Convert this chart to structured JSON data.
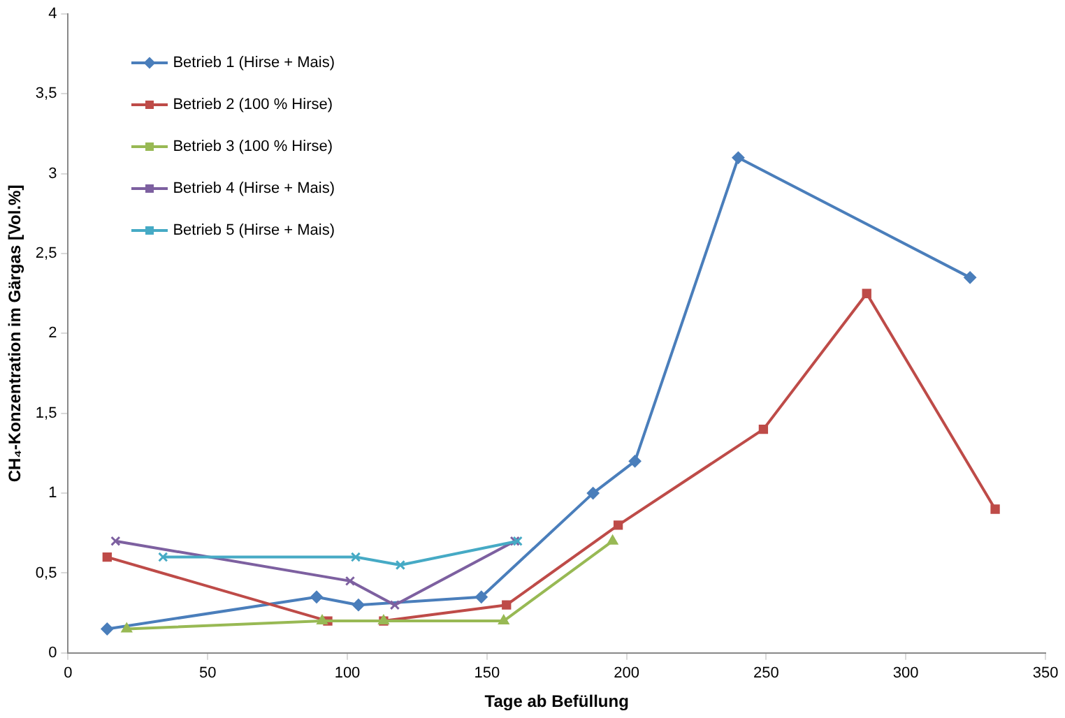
{
  "chart_data": {
    "type": "line",
    "xlabel": "Tage ab Befüllung",
    "ylabel": "CH₄-Konzentration im Gärgas [Vol.%]",
    "xlim": [
      0,
      350
    ],
    "xticks": [
      0,
      50,
      100,
      150,
      200,
      250,
      300,
      350
    ],
    "ylim": [
      0,
      4
    ],
    "yticks": [
      0,
      {
        "value": 0.5,
        "label": "0,5"
      },
      1,
      {
        "value": 1.5,
        "label": "1,5"
      },
      2,
      {
        "value": 2.5,
        "label": "2,5"
      },
      3,
      {
        "value": 3.5,
        "label": "3,5"
      },
      4
    ],
    "grid": false,
    "legend": "top left",
    "line_style": "solid",
    "series": [
      {
        "name": "Betrieb 1 (Hirse + Mais)",
        "color": "#4a7ebb",
        "marker": "diamond",
        "x": [
          14,
          89,
          104,
          148,
          188,
          203,
          240,
          323
        ],
        "values": [
          0.15,
          0.35,
          0.3,
          0.35,
          1.0,
          1.2,
          3.1,
          2.35
        ]
      },
      {
        "name": "Betrieb 2 (100 % Hirse)",
        "color": "#be4b48",
        "marker": "square",
        "x": [
          14,
          93,
          113,
          157,
          197,
          249,
          286,
          332
        ],
        "values": [
          0.6,
          0.2,
          0.2,
          0.3,
          0.8,
          1.4,
          2.25,
          0.9
        ]
      },
      {
        "name": "Betrieb 3 (100 % Hirse)",
        "color": "#98b954",
        "marker": "triangle",
        "x": [
          21,
          91,
          113,
          156,
          195
        ],
        "values": [
          0.15,
          0.2,
          0.2,
          0.2,
          0.7
        ]
      },
      {
        "name": "Betrieb 4 (Hirse + Mais)",
        "color": "#7d60a0",
        "marker": "cross",
        "x": [
          17,
          101,
          117,
          160
        ],
        "values": [
          0.7,
          0.45,
          0.3,
          0.7
        ]
      },
      {
        "name": "Betrieb 5 (Hirse + Mais)",
        "color": "#46aac5",
        "marker": "cross",
        "x": [
          34,
          103,
          119,
          161
        ],
        "values": [
          0.6,
          0.6,
          0.55,
          0.7
        ]
      }
    ]
  }
}
